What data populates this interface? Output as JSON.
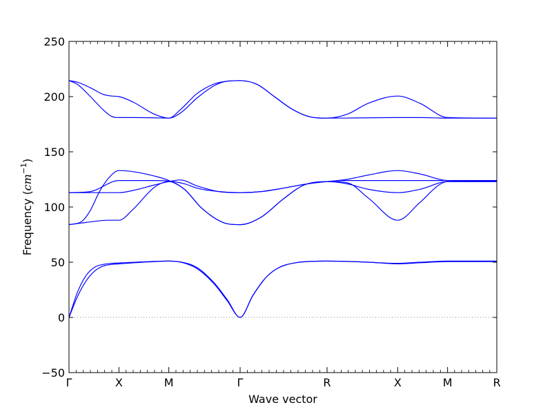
{
  "chart_data": {
    "type": "line",
    "title": "",
    "xlabel": "Wave vector",
    "ylabel_text": "Frequency (",
    "ylabel_unit": "cm",
    "ylabel_exponent": "−1",
    "ylabel_close": ")",
    "ylim": [
      -50,
      250
    ],
    "yticks": [
      {
        "value": -50,
        "label": "−50"
      },
      {
        "value": 0,
        "label": "0"
      },
      {
        "value": 50,
        "label": "50"
      },
      {
        "value": 100,
        "label": "100"
      },
      {
        "value": 150,
        "label": "150"
      },
      {
        "value": 200,
        "label": "200"
      },
      {
        "value": 250,
        "label": "250"
      }
    ],
    "xlim": [
      0,
      1
    ],
    "high_symmetry_points": [
      {
        "label": "Γ",
        "x": 0.0
      },
      {
        "label": "X",
        "x": 0.1167
      },
      {
        "label": "M",
        "x": 0.2333
      },
      {
        "label": "Γ",
        "x": 0.4
      },
      {
        "label": "R",
        "x": 0.6032
      },
      {
        "label": "X",
        "x": 0.7683
      },
      {
        "label": "M",
        "x": 0.8849
      },
      {
        "label": "R",
        "x": 1.0
      }
    ],
    "zero_line": {
      "y": 0,
      "style": "dotted"
    },
    "colors": {
      "bands": "#0000ff",
      "axes": "#000000",
      "zero_line": "#888888"
    },
    "series": [
      {
        "x": [
          0,
          0.02,
          0.04,
          0.06,
          0.08,
          0.1,
          0.1167,
          0.1833,
          0.2333,
          0.2667,
          0.3,
          0.34,
          0.37,
          0.4,
          0.43,
          0.46,
          0.49,
          0.53,
          0.57,
          0.6032,
          0.65,
          0.7,
          0.7683,
          0.82,
          0.8849,
          1.0
        ],
        "y": [
          0,
          23,
          38,
          45.5,
          48,
          49,
          49.3,
          50.5,
          51,
          49.5,
          44,
          30,
          15,
          0,
          20,
          36,
          45,
          49.5,
          50.8,
          51,
          50.7,
          50,
          49,
          50,
          51,
          51
        ]
      },
      {
        "x": [
          0,
          0.02,
          0.04,
          0.06,
          0.08,
          0.1,
          0.1167,
          0.1833,
          0.2333,
          0.2667,
          0.3,
          0.34,
          0.37,
          0.4,
          0.43,
          0.46,
          0.49,
          0.53,
          0.57,
          0.6032,
          0.65,
          0.7,
          0.7683,
          0.82,
          0.8849,
          1.0
        ],
        "y": [
          0,
          19,
          33,
          42,
          46.5,
          48,
          48.5,
          50.2,
          51,
          49.8,
          45,
          31,
          16,
          0,
          20,
          36,
          45,
          49.5,
          50.8,
          51,
          50.7,
          50,
          48.5,
          49.5,
          50.5,
          50.5
        ]
      },
      {
        "x": [
          0,
          0.03,
          0.06,
          0.09,
          0.1167,
          0.15,
          0.2,
          0.2333,
          0.27,
          0.31,
          0.36,
          0.4,
          0.45,
          0.5,
          0.55,
          0.6032,
          0.65,
          0.7,
          0.7683,
          0.82,
          0.8649,
          0.8849,
          1.0
        ],
        "y": [
          84,
          85.5,
          87,
          88,
          88,
          98,
          118,
          123,
          116,
          99,
          86,
          84,
          91,
          107,
          120,
          123,
          122,
          108,
          88,
          104,
          120,
          123,
          123
        ]
      },
      {
        "x": [
          0,
          0.03,
          0.05,
          0.07,
          0.09,
          0.1167,
          0.15,
          0.2,
          0.2333,
          0.27,
          0.31,
          0.36,
          0.4,
          0.45,
          0.5,
          0.55,
          0.6032,
          0.65,
          0.7,
          0.7683,
          0.82,
          0.8849,
          1.0
        ],
        "y": [
          84,
          87,
          97,
          113,
          125,
          133,
          132,
          128,
          124,
          116,
          99,
          86,
          84,
          91,
          107,
          120,
          123,
          125,
          129,
          133,
          130,
          124,
          123.5
        ]
      },
      {
        "x": [
          0,
          0.05,
          0.1167,
          0.15,
          0.2,
          0.2333,
          0.27,
          0.3,
          0.35,
          0.4,
          0.45,
          0.5,
          0.55,
          0.6032,
          0.65,
          0.7,
          0.7683,
          0.82,
          0.8849,
          1.0
        ],
        "y": [
          113,
          114,
          124,
          124,
          124,
          123.5,
          121,
          117,
          114,
          113,
          114,
          117,
          120.5,
          123,
          124,
          124,
          124,
          124,
          124,
          124
        ]
      },
      {
        "x": [
          0,
          0.05,
          0.1167,
          0.15,
          0.2,
          0.2333,
          0.26,
          0.3,
          0.35,
          0.4,
          0.45,
          0.5,
          0.55,
          0.6032,
          0.65,
          0.7,
          0.7683,
          0.82,
          0.8849,
          1.0
        ],
        "y": [
          113,
          113,
          113,
          115,
          120,
          123,
          124.5,
          119,
          114,
          113,
          114,
          117,
          120.5,
          123,
          121,
          116,
          113,
          116,
          123,
          123
        ]
      },
      {
        "x": [
          0,
          0.02,
          0.05,
          0.08,
          0.1,
          0.1167,
          0.15,
          0.2,
          0.2333,
          0.26,
          0.3,
          0.34,
          0.37,
          0.4,
          0.44,
          0.48,
          0.52,
          0.56,
          0.6032,
          0.65,
          0.7,
          0.7683,
          0.82,
          0.8849,
          1.0
        ],
        "y": [
          214.5,
          213,
          208,
          202,
          200.5,
          200,
          195,
          184,
          180.5,
          185,
          199,
          210,
          214,
          214.5,
          211,
          200,
          189,
          182,
          180.5,
          184,
          194,
          200.5,
          194,
          181,
          180.5
        ]
      },
      {
        "x": [
          0,
          0.02,
          0.05,
          0.08,
          0.1,
          0.1167,
          0.15,
          0.2,
          0.2333,
          0.26,
          0.3,
          0.34,
          0.37,
          0.4,
          0.44,
          0.48,
          0.52,
          0.56,
          0.6032,
          0.65,
          0.7,
          0.7683,
          0.82,
          0.8849,
          1.0
        ],
        "y": [
          214.5,
          211,
          200,
          188,
          182,
          181,
          181,
          180.8,
          180.5,
          188,
          203,
          211.5,
          214,
          214.5,
          211,
          200,
          189,
          182,
          180.5,
          180.6,
          180.8,
          181,
          181,
          180.5,
          180.5
        ]
      }
    ]
  }
}
